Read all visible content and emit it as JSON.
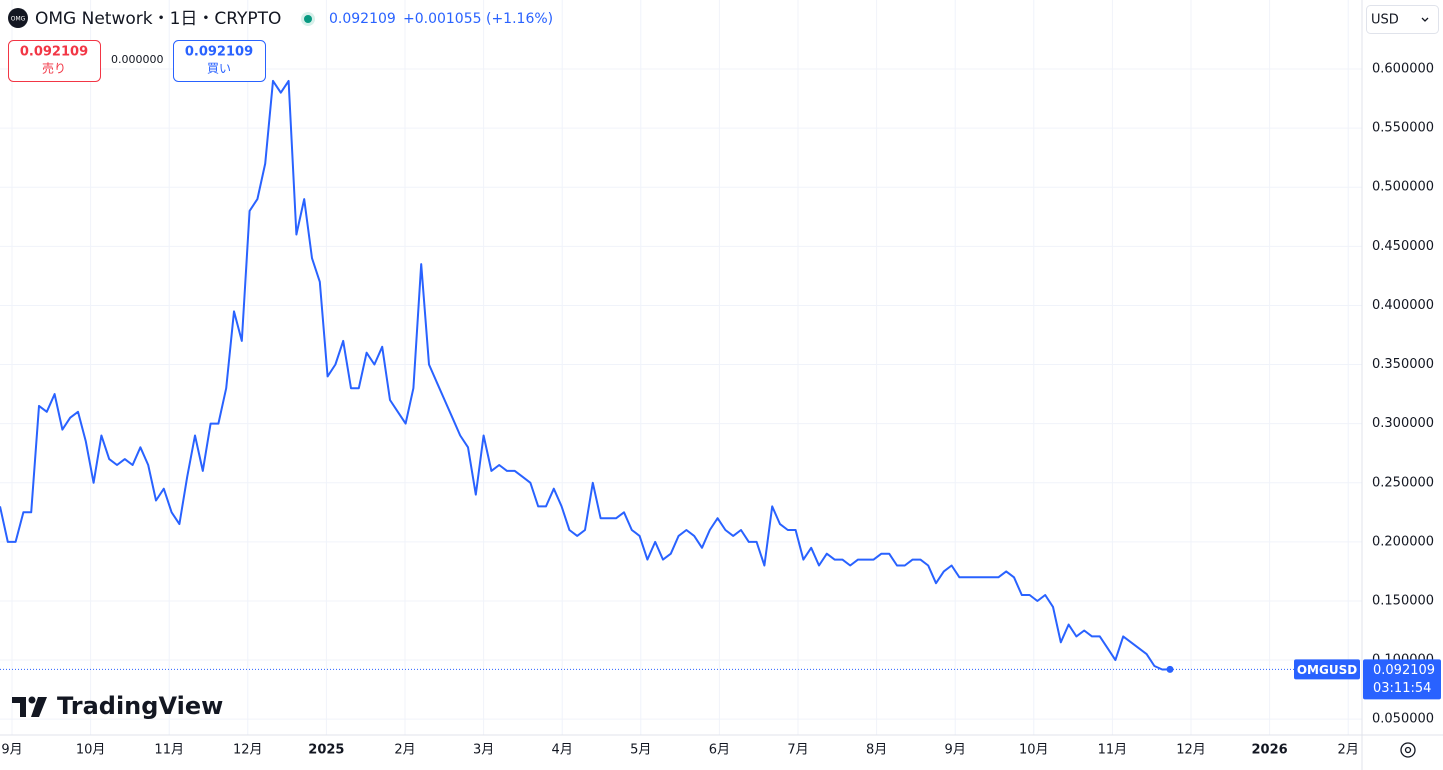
{
  "header": {
    "logo": "OMG",
    "symbol": "OMG Network・1日・CRYPTO",
    "price": "0.092109",
    "change": "+0.001055 (+1.16%)",
    "currency": "USD"
  },
  "trade": {
    "sell_price": "0.092109",
    "sell": "売り",
    "spread": "0.000000",
    "buy_price": "0.092109",
    "buy": "買い"
  },
  "price_tag": {
    "label": "0.092109",
    "countdown": "03:11:54"
  },
  "brand": "TradingView",
  "chart_data": {
    "type": "line",
    "grid": true,
    "ylim": [
      0.0366,
      0.6584
    ],
    "yticks": [
      {
        "value": 0.05,
        "label": "0.050000"
      },
      {
        "value": 0.1,
        "label": "0.100000"
      },
      {
        "value": 0.15,
        "label": "0.150000"
      },
      {
        "value": 0.2,
        "label": "0.200000"
      },
      {
        "value": 0.25,
        "label": "0.250000"
      },
      {
        "value": 0.3,
        "label": "0.300000"
      },
      {
        "value": 0.35,
        "label": "0.350000"
      },
      {
        "value": 0.4,
        "label": "0.400000"
      },
      {
        "value": 0.45,
        "label": "0.450000"
      },
      {
        "value": 0.5,
        "label": "0.500000"
      },
      {
        "value": 0.55,
        "label": "0.550000"
      },
      {
        "value": 0.6,
        "label": "0.600000"
      }
    ],
    "month_labels": [
      "9月",
      "10月",
      "11月",
      "12月",
      "2025",
      "2月",
      "3月",
      "4月",
      "5月",
      "6月",
      "7月",
      "8月",
      "9月",
      "10月",
      "11月",
      "12月",
      "2026",
      "2月"
    ],
    "series": [
      {
        "name": "OMGUSD",
        "color": "#2962ff",
        "values": [
          0.23,
          0.2,
          0.2,
          0.225,
          0.225,
          0.315,
          0.31,
          0.325,
          0.295,
          0.305,
          0.31,
          0.285,
          0.25,
          0.29,
          0.27,
          0.265,
          0.27,
          0.265,
          0.28,
          0.265,
          0.235,
          0.245,
          0.225,
          0.215,
          0.255,
          0.29,
          0.26,
          0.3,
          0.3,
          0.33,
          0.395,
          0.37,
          0.48,
          0.49,
          0.52,
          0.59,
          0.58,
          0.59,
          0.46,
          0.49,
          0.44,
          0.42,
          0.34,
          0.35,
          0.37,
          0.33,
          0.33,
          0.36,
          0.35,
          0.365,
          0.32,
          0.31,
          0.3,
          0.33,
          0.435,
          0.35,
          0.335,
          0.32,
          0.305,
          0.29,
          0.28,
          0.24,
          0.29,
          0.26,
          0.265,
          0.26,
          0.26,
          0.255,
          0.25,
          0.23,
          0.23,
          0.245,
          0.23,
          0.21,
          0.205,
          0.21,
          0.25,
          0.22,
          0.22,
          0.22,
          0.225,
          0.21,
          0.205,
          0.185,
          0.2,
          0.185,
          0.19,
          0.205,
          0.21,
          0.205,
          0.195,
          0.21,
          0.22,
          0.21,
          0.205,
          0.21,
          0.2,
          0.2,
          0.18,
          0.23,
          0.215,
          0.21,
          0.21,
          0.185,
          0.195,
          0.18,
          0.19,
          0.185,
          0.185,
          0.18,
          0.185,
          0.185,
          0.185,
          0.19,
          0.19,
          0.18,
          0.18,
          0.185,
          0.185,
          0.18,
          0.165,
          0.175,
          0.18,
          0.17,
          0.17,
          0.17,
          0.17,
          0.17,
          0.17,
          0.175,
          0.17,
          0.155,
          0.155,
          0.15,
          0.155,
          0.145,
          0.115,
          0.13,
          0.12,
          0.125,
          0.12,
          0.12,
          0.11,
          0.1,
          0.12,
          0.115,
          0.11,
          0.105,
          0.095,
          0.092,
          0.092109
        ]
      }
    ]
  }
}
